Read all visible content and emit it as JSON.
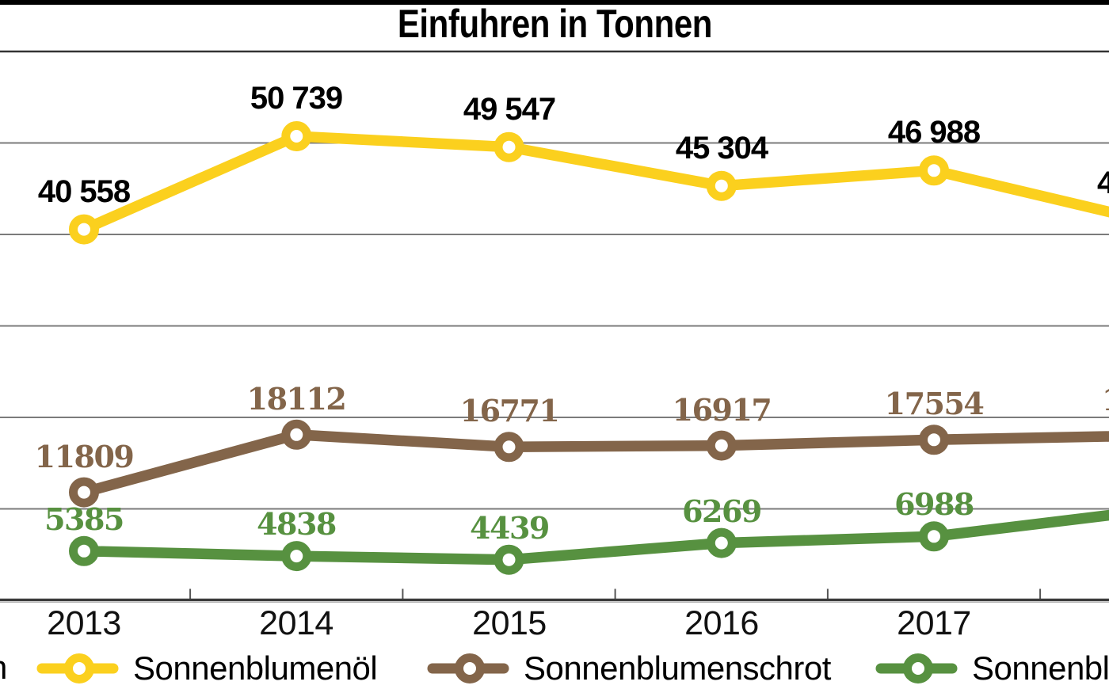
{
  "title": "Einfuhren in Tonnen",
  "chart_data": {
    "type": "line",
    "title": "Einfuhren in Tonnen",
    "categories": [
      "2013",
      "2014",
      "2015",
      "2016",
      "2017"
    ],
    "ylim": [
      0,
      60000
    ],
    "gridline_step": 10000,
    "grid": true,
    "legend_position": "bottom",
    "crop_note": "chart is cropped at left and right edges; the 2018 points and one left legend letter are cut off",
    "series": [
      {
        "name": "Sonnenblumenöl",
        "color": "#FBD01E",
        "label_color": "#000000",
        "label_style": "bold-sans",
        "values": [
          40558,
          50739,
          49547,
          45304,
          46988
        ],
        "value_labels": [
          "40 558",
          "50 739",
          "49 547",
          "45 304",
          "46 988"
        ],
        "cropped_right": {
          "label_fragment": "4",
          "fragment_x": 1385,
          "est_next_value": 41500
        }
      },
      {
        "name": "Sonnenblumenschrot",
        "color": "#83654A",
        "label_color": "#83654A",
        "label_style": "bold-slab-serif",
        "values": [
          11809,
          18112,
          16771,
          16917,
          17554
        ],
        "value_labels": [
          "11809",
          "18112",
          "16771",
          "16917",
          "17554"
        ],
        "cropped_right": {
          "label_fragment": "1",
          "fragment_x": 1391,
          "est_next_value": 18000
        }
      },
      {
        "name": "Sonnenblu",
        "color": "#579140",
        "label_color": "#579140",
        "label_style": "bold-slab-serif",
        "values": [
          5385,
          4838,
          4439,
          6269,
          6988
        ],
        "value_labels": [
          "5385",
          "4838",
          "4439",
          "6269",
          "6988"
        ],
        "cropped_right": {
          "label_fragment": "",
          "fragment_x": null,
          "est_next_value": 9800
        }
      }
    ]
  },
  "legend": {
    "left_cut_fragment": "n",
    "items": [
      {
        "label": "Sonnenblumenöl",
        "color": "#FBD01E"
      },
      {
        "label": "Sonnenblumenschrot",
        "color": "#83654A"
      },
      {
        "label": "Sonnenblu",
        "color": "#579140"
      }
    ]
  },
  "colors": {
    "background": "#ffffff",
    "top_bar": "#000000",
    "gridline": "#7b7b7b",
    "top_gridline": "#333333",
    "axis": "#3b3b3b",
    "tick": "#555555"
  }
}
